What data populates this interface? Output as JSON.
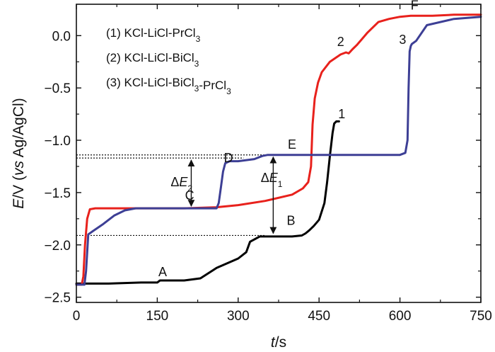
{
  "chart_data": {
    "type": "line",
    "xlabel_italic": "t",
    "xlabel_unit": "/s",
    "ylabel_italic": "E",
    "ylabel_mid": "/V (",
    "ylabel_vs": "vs",
    "ylabel_end": " Ag/AgCl)",
    "xlim": [
      0,
      750
    ],
    "ylim": [
      -2.55,
      0.3
    ],
    "xticks": [
      0,
      150,
      300,
      450,
      600,
      750
    ],
    "yticks": [
      0.0,
      -0.5,
      -1.0,
      -1.5,
      -2.0,
      -2.5
    ],
    "xtick_labels": [
      "0",
      "150",
      "300",
      "450",
      "600",
      "750"
    ],
    "ytick_labels": [
      "0.0",
      "−0.5",
      "−1.0",
      "−1.5",
      "−2.0",
      "−2.5"
    ],
    "legend": [
      {
        "text": "(1) KCl-LiCl-PrCl",
        "sub": "3",
        "tail": ""
      },
      {
        "text": "(2) KCl-LiCl-BiCl",
        "sub": "3",
        "tail": ""
      },
      {
        "text": "(3) KCl-LiCl-BiCl",
        "sub": "3",
        "tail": "-PrCl",
        "sub2": "3"
      }
    ],
    "series": [
      {
        "label": "1",
        "color": "#000000",
        "x": [
          0,
          60,
          120,
          150,
          155,
          200,
          230,
          260,
          300,
          315,
          322,
          340,
          380,
          400,
          418,
          425,
          432,
          440,
          450,
          460,
          465,
          470,
          475,
          478,
          482,
          487
        ],
        "y": [
          -2.37,
          -2.37,
          -2.36,
          -2.36,
          -2.34,
          -2.34,
          -2.32,
          -2.22,
          -2.13,
          -2.07,
          -1.97,
          -1.92,
          -1.92,
          -1.92,
          -1.91,
          -1.89,
          -1.86,
          -1.82,
          -1.76,
          -1.6,
          -1.4,
          -1.15,
          -0.93,
          -0.84,
          -0.82,
          -0.82
        ]
      },
      {
        "label": "2",
        "color": "#e8211c",
        "x": [
          0,
          10,
          13,
          16,
          20,
          25,
          35,
          50,
          100,
          200,
          260,
          300,
          350,
          400,
          420,
          430,
          435,
          438,
          442,
          448,
          455,
          470,
          490,
          500,
          505,
          512,
          520,
          540,
          560,
          580,
          600,
          620,
          660,
          700,
          750
        ],
        "y": [
          -2.38,
          -2.38,
          -2.3,
          -2.0,
          -1.75,
          -1.66,
          -1.65,
          -1.65,
          -1.65,
          -1.65,
          -1.64,
          -1.62,
          -1.58,
          -1.52,
          -1.46,
          -1.4,
          -1.25,
          -0.85,
          -0.6,
          -0.45,
          -0.35,
          -0.25,
          -0.18,
          -0.16,
          -0.17,
          -0.13,
          -0.09,
          0.03,
          0.13,
          0.16,
          0.18,
          0.19,
          0.19,
          0.2,
          0.2
        ]
      },
      {
        "label": "3",
        "color": "#3d3f95",
        "x": [
          0,
          15,
          18,
          22,
          30,
          50,
          70,
          90,
          110,
          150,
          200,
          260,
          264,
          268,
          272,
          276,
          284,
          300,
          330,
          345,
          355,
          362,
          400,
          500,
          600,
          610,
          614,
          616,
          618,
          620,
          622,
          630,
          650,
          700,
          750
        ],
        "y": [
          -2.38,
          -2.38,
          -2.25,
          -1.9,
          -1.87,
          -1.8,
          -1.72,
          -1.67,
          -1.65,
          -1.65,
          -1.65,
          -1.65,
          -1.6,
          -1.45,
          -1.3,
          -1.22,
          -1.2,
          -1.2,
          -1.18,
          -1.15,
          -1.14,
          -1.14,
          -1.14,
          -1.14,
          -1.14,
          -1.12,
          -1.0,
          -0.5,
          -0.15,
          -0.1,
          -0.08,
          -0.05,
          0.1,
          0.16,
          0.18
        ]
      }
    ],
    "annotations": [
      {
        "text": "A",
        "x": 160,
        "y": -2.3
      },
      {
        "text": "B",
        "x": 398,
        "y": -1.81
      },
      {
        "text": "C",
        "x": 210,
        "y": -1.57
      },
      {
        "text": "D",
        "x": 282,
        "y": -1.21
      },
      {
        "text": "E",
        "x": 400,
        "y": -1.08
      },
      {
        "text": "F",
        "x": 627,
        "y": 0.25
      },
      {
        "text": "2",
        "x": 490,
        "y": -0.1
      },
      {
        "text": "3",
        "x": 605,
        "y": -0.08
      },
      {
        "text": "1",
        "x": 492,
        "y": -0.79
      }
    ],
    "delta_labels": [
      {
        "symbol": "Δ",
        "italic": "E",
        "sub": "2",
        "x": 195,
        "y": -1.44
      },
      {
        "symbol": "Δ",
        "italic": "E",
        "sub": "1",
        "x": 362,
        "y": -1.4
      }
    ],
    "dotted_lines": [
      {
        "y": -1.14,
        "x1": 0,
        "x2": 370
      },
      {
        "y": -1.17,
        "x1": 0,
        "x2": 310
      },
      {
        "y": -1.91,
        "x1": 0,
        "x2": 350
      }
    ],
    "arrows": [
      {
        "x": 213,
        "y1": -1.65,
        "y2": -1.17
      },
      {
        "x": 365,
        "y1": -1.91,
        "y2": -1.14
      }
    ],
    "grid": false
  }
}
